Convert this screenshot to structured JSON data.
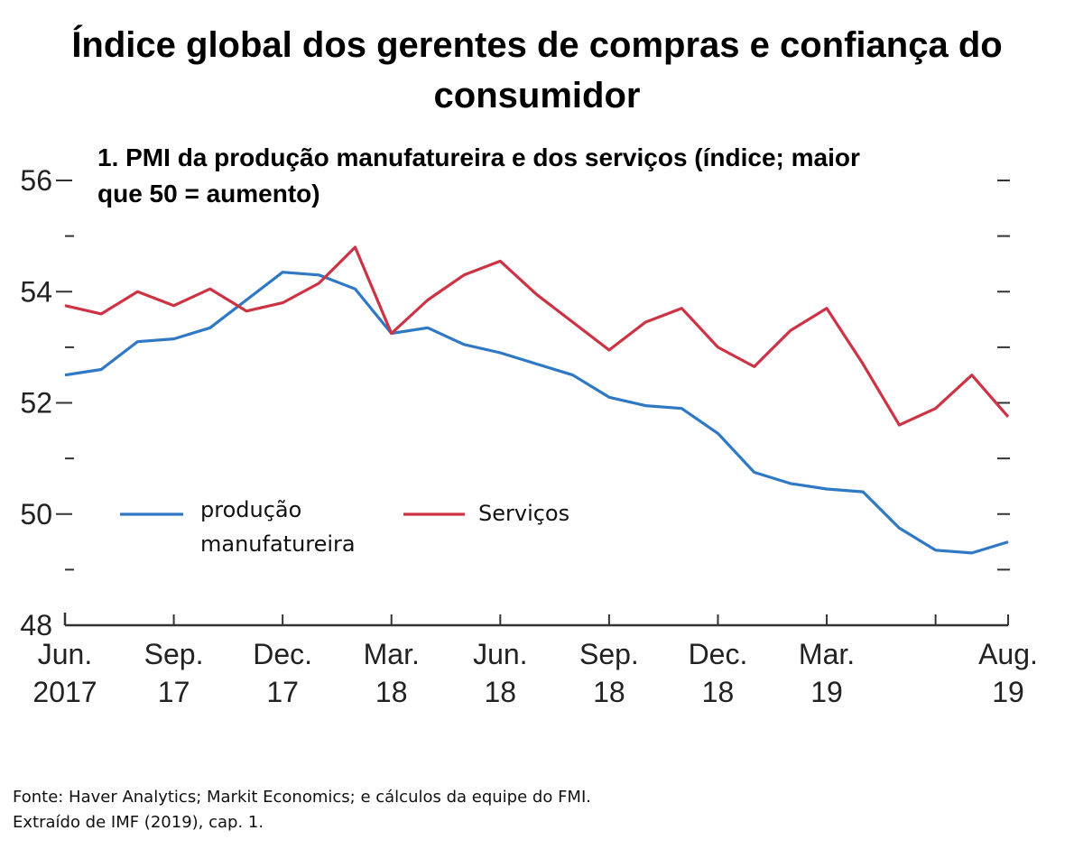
{
  "title": "Índice global dos gerentes de compras e confiança do consumidor",
  "footer": {
    "source": "Fonte: Haver Analytics; Markit Economics; e cálculos da equipe do FMI.",
    "extract": "Extraído de IMF (2019), cap. 1."
  },
  "chart_data": {
    "type": "line",
    "title": "1. PMI da produção manufatureira e dos serviços (índice; maior que 50 = aumento)",
    "ylim": [
      48,
      56
    ],
    "y_ticks": [
      "48",
      "50",
      "52",
      "54",
      "56"
    ],
    "x": [
      "Jun 2017",
      "Jul 2017",
      "Aug 2017",
      "Sep 2017",
      "Oct 2017",
      "Nov 2017",
      "Dec 2017",
      "Jan 2018",
      "Feb 2018",
      "Mar 2018",
      "Apr 2018",
      "May 2018",
      "Jun 2018",
      "Jul 2018",
      "Aug 2018",
      "Sep 2018",
      "Oct 2018",
      "Nov 2018",
      "Dec 2018",
      "Jan 2019",
      "Feb 2019",
      "Mar 2019",
      "Apr 2019",
      "May 2019",
      "Jun 2019",
      "Jul 2019",
      "Aug 2019"
    ],
    "x_tick_labels": [
      {
        "line1": "Jun.",
        "line2": "2017",
        "index": 0
      },
      {
        "line1": "Sep.",
        "line2": "17",
        "index": 3
      },
      {
        "line1": "Dec.",
        "line2": "17",
        "index": 6
      },
      {
        "line1": "Mar.",
        "line2": "18",
        "index": 9
      },
      {
        "line1": "Jun.",
        "line2": "18",
        "index": 12
      },
      {
        "line1": "Sep.",
        "line2": "18",
        "index": 15
      },
      {
        "line1": "Dec.",
        "line2": "18",
        "index": 18
      },
      {
        "line1": "Mar.",
        "line2": "19",
        "index": 21
      },
      {
        "line1": "Aug.",
        "line2": "19",
        "index": 26
      }
    ],
    "series": [
      {
        "name": "produção manufatureira",
        "color": "#2f78c4",
        "values": [
          52.5,
          52.6,
          53.1,
          53.15,
          53.35,
          53.85,
          54.35,
          54.3,
          54.05,
          53.25,
          53.35,
          53.05,
          52.9,
          52.7,
          52.5,
          52.1,
          51.95,
          51.9,
          51.45,
          50.75,
          50.55,
          50.45,
          50.4,
          49.75,
          49.35,
          49.3,
          49.5
        ]
      },
      {
        "name": "Serviços",
        "color": "#cc3344",
        "values": [
          53.75,
          53.6,
          54.0,
          53.75,
          54.05,
          53.65,
          53.8,
          54.15,
          54.8,
          53.25,
          53.85,
          54.3,
          54.55,
          53.95,
          53.45,
          52.95,
          53.45,
          53.7,
          53.0,
          52.65,
          53.3,
          53.7,
          52.7,
          51.6,
          51.9,
          52.5,
          51.75
        ]
      }
    ],
    "legend": {
      "placement": "lower-left"
    }
  }
}
